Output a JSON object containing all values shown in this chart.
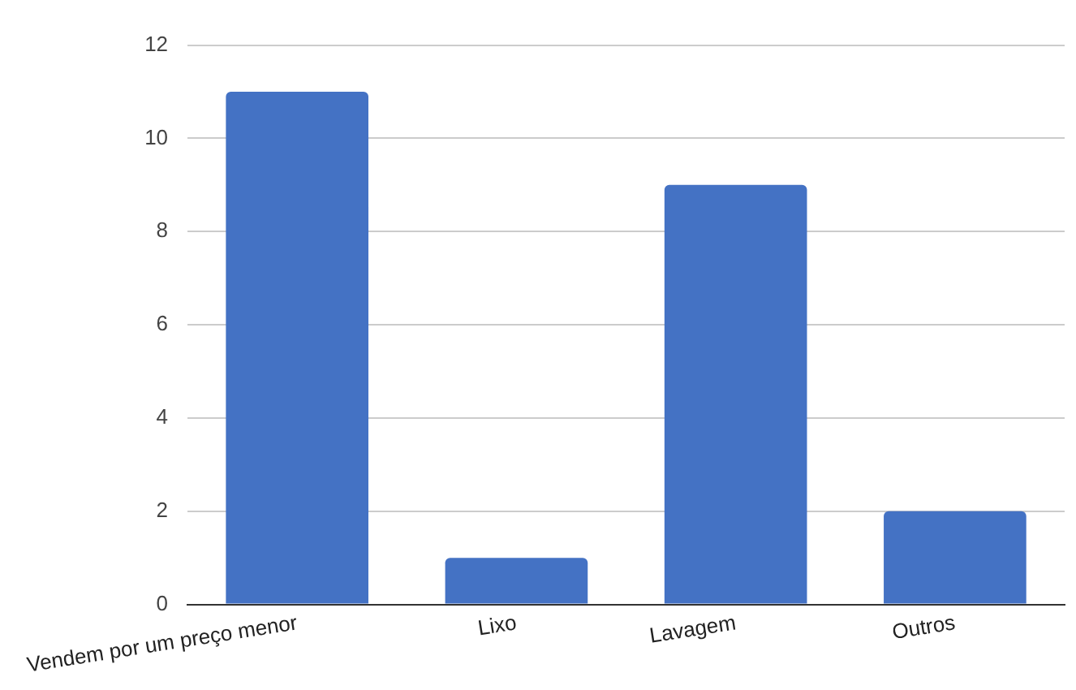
{
  "chart_data": {
    "type": "bar",
    "categories": [
      "Vendem por um preço menor",
      "Lixo",
      "Lavagem",
      "Outros"
    ],
    "values": [
      11,
      1,
      9,
      2
    ],
    "color": "#4472c4",
    "ylim": [
      0,
      12
    ],
    "yticks": [
      0,
      2,
      4,
      6,
      8,
      10,
      12
    ],
    "grid": "y",
    "legend": false
  }
}
